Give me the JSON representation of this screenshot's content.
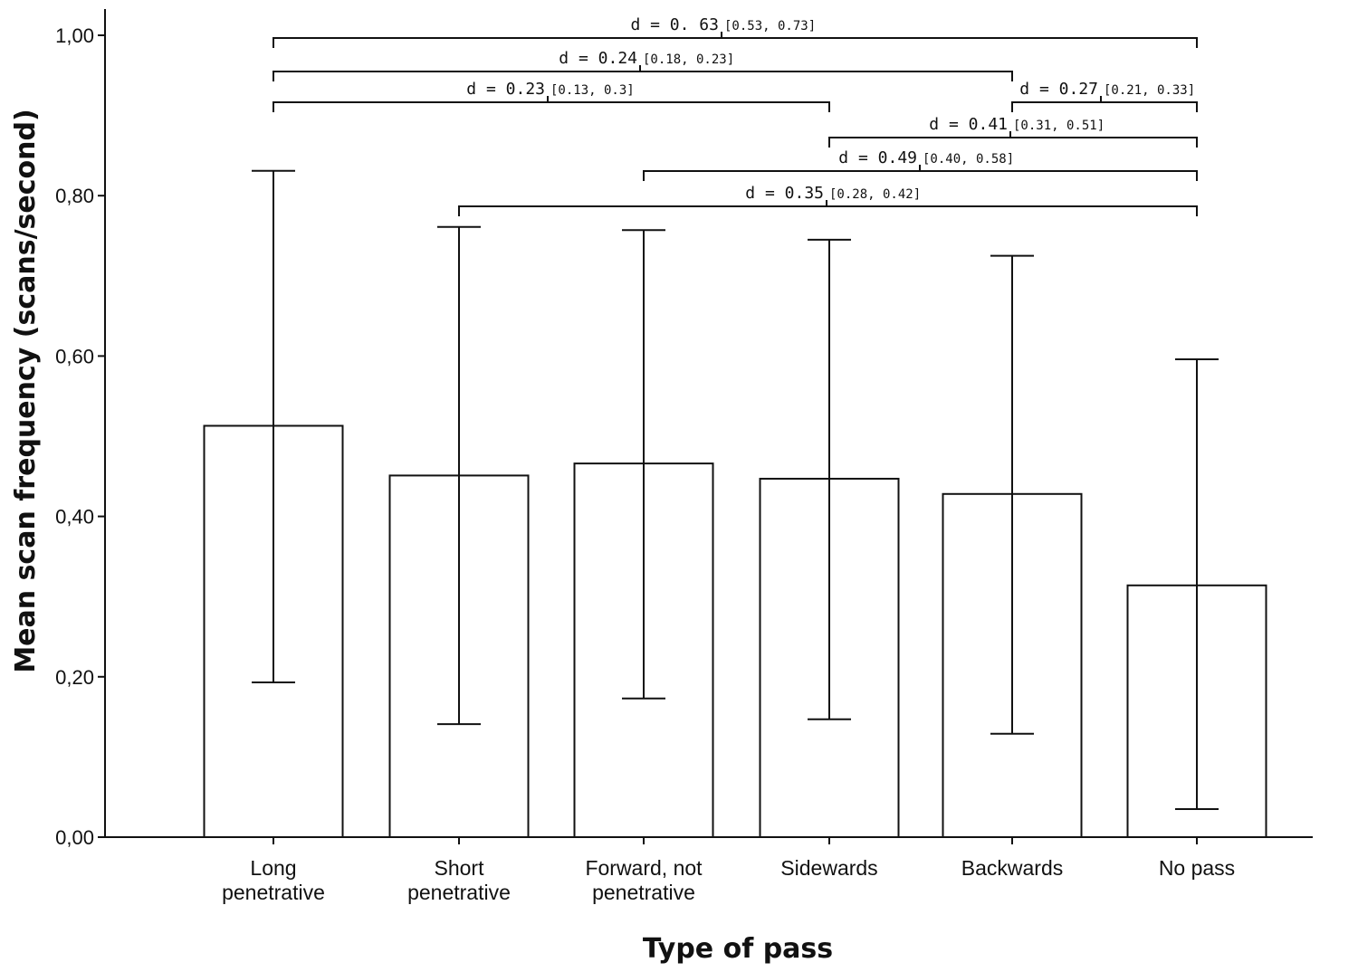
{
  "chart_data": {
    "type": "bar",
    "xlabel": "Type of pass",
    "ylabel": "Mean scan frequency (scans/second)",
    "ylim": [
      0,
      1
    ],
    "yticks": [
      "0,00",
      "0,20",
      "0,40",
      "0,60",
      "0,80",
      "1,00"
    ],
    "categories": [
      [
        "Long",
        "penetrative"
      ],
      [
        "Short",
        "penetrative"
      ],
      [
        "Forward, not",
        "penetrative"
      ],
      [
        "Sidewards"
      ],
      [
        "Backwards"
      ],
      [
        "No pass"
      ]
    ],
    "values": [
      0.513,
      0.451,
      0.466,
      0.447,
      0.428,
      0.314
    ],
    "error_low": [
      0.193,
      0.141,
      0.173,
      0.147,
      0.129,
      0.035
    ],
    "error_high": [
      0.831,
      0.761,
      0.757,
      0.745,
      0.725,
      0.596
    ],
    "grid": false,
    "comparisons": [
      {
        "from": 0,
        "to": 5,
        "label": "d = 0. 63",
        "ci": "[0.53, 0.73]"
      },
      {
        "from": 0,
        "to": 4,
        "label": "d = 0.24",
        "ci": "[0.18, 0.23]"
      },
      {
        "from": 0,
        "to": 3,
        "label": "d = 0.23",
        "ci": "[0.13, 0.3]"
      },
      {
        "from": 4,
        "to": 5,
        "label": "d = 0.27",
        "ci": "[0.21, 0.33]"
      },
      {
        "from": 3,
        "to": 5,
        "label": "d = 0.41",
        "ci": "[0.31, 0.51]"
      },
      {
        "from": 2,
        "to": 5,
        "label": "d = 0.49",
        "ci": "[0.40, 0.58]"
      },
      {
        "from": 1,
        "to": 5,
        "label": "d = 0.35",
        "ci": "[0.28, 0.42]"
      }
    ]
  }
}
